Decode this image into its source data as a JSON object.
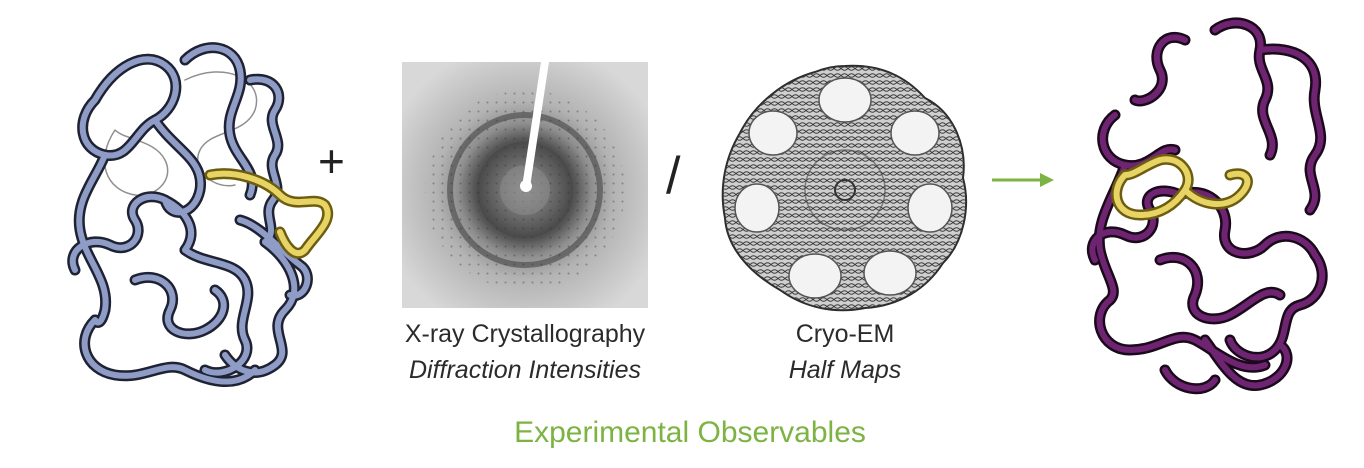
{
  "xray": {
    "title": "X-ray Crystallography",
    "subtitle": "Diffraction Intensities"
  },
  "cryoem": {
    "title": "Cryo-EM",
    "subtitle": "Half Maps"
  },
  "footer": {
    "label": "Experimental Observables"
  },
  "operators": {
    "plus": "+",
    "slash": "/"
  },
  "colors": {
    "input_model_tube": "#7a88b6",
    "output_model_tube": "#6a1f6e",
    "highlight_loop": "#e4cf5a",
    "footer_text": "#7cb342",
    "arrow": "#7cb342"
  },
  "icons": {
    "input_model": "protein-ribbon-model-icon",
    "diffraction": "diffraction-pattern-icon",
    "cryoem_map": "cryoem-density-map-icon",
    "output_model": "refined-protein-model-icon",
    "arrow": "right-arrow-icon"
  }
}
